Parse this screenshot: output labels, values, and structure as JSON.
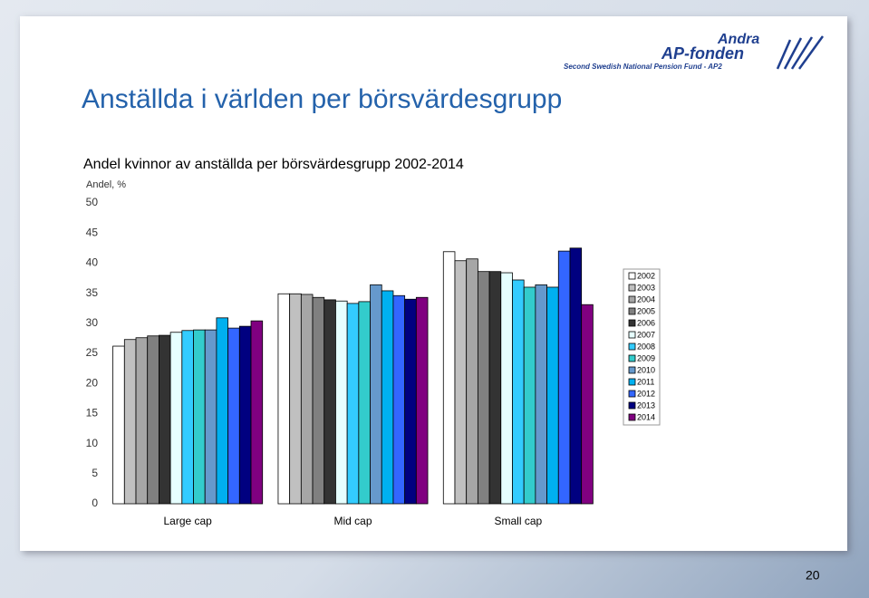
{
  "slide": {
    "title": "Anställda i världen per börsvärdesgrupp",
    "page_number": "20",
    "logo": {
      "line1": "Andra",
      "line2": "AP-fonden",
      "tagline": "Second Swedish National Pension Fund - AP2"
    }
  },
  "chart_data": {
    "type": "bar",
    "title": "Andel kvinnor av anställda per börsvärdesgrupp 2002-2014",
    "y_label": "Andel, %",
    "categories": [
      "Large cap",
      "Mid cap",
      "Small cap"
    ],
    "ylim": [
      0,
      50
    ],
    "yticks": [
      0,
      5,
      10,
      15,
      20,
      25,
      30,
      35,
      40,
      45,
      50
    ],
    "grid": false,
    "legend": "right",
    "series": [
      {
        "name": "2002",
        "color": "#ffffff",
        "values": [
          26.2,
          34.9,
          41.9
        ]
      },
      {
        "name": "2003",
        "color": "#c0c0c0",
        "values": [
          27.3,
          34.9,
          40.4
        ]
      },
      {
        "name": "2004",
        "color": "#a6a6a6",
        "values": [
          27.6,
          34.8,
          40.7
        ]
      },
      {
        "name": "2005",
        "color": "#808080",
        "values": [
          27.9,
          34.3,
          38.6
        ]
      },
      {
        "name": "2006",
        "color": "#333333",
        "values": [
          28.0,
          33.9,
          38.6
        ]
      },
      {
        "name": "2007",
        "color": "#e6ffff",
        "values": [
          28.5,
          33.7,
          38.4
        ]
      },
      {
        "name": "2008",
        "color": "#33ccff",
        "values": [
          28.8,
          33.3,
          37.2
        ]
      },
      {
        "name": "2009",
        "color": "#33cccc",
        "values": [
          28.9,
          33.6,
          36.0
        ]
      },
      {
        "name": "2010",
        "color": "#6699cc",
        "values": [
          28.9,
          36.4,
          36.4
        ]
      },
      {
        "name": "2011",
        "color": "#00b0f0",
        "values": [
          30.9,
          35.4,
          36.0
        ]
      },
      {
        "name": "2012",
        "color": "#3366ff",
        "values": [
          29.2,
          34.6,
          42.0
        ]
      },
      {
        "name": "2013",
        "color": "#000080",
        "values": [
          29.5,
          34.0,
          42.5
        ]
      },
      {
        "name": "2014",
        "color": "#800080",
        "values": [
          30.4,
          34.3,
          33.1
        ]
      }
    ]
  }
}
